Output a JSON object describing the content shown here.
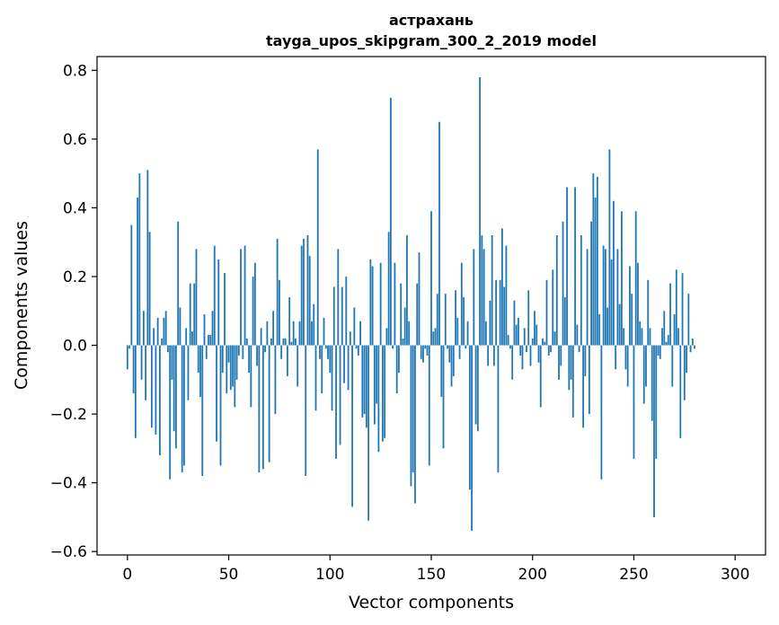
{
  "chart_data": {
    "type": "bar",
    "title": "астрахань",
    "subtitle": "tayga_upos_skipgram_300_2_2019 model",
    "xlabel": "Vector components",
    "ylabel": "Components values",
    "xlim": [
      -15,
      315
    ],
    "ylim": [
      -0.61,
      0.84
    ],
    "xticks": [
      0,
      50,
      100,
      150,
      200,
      250,
      300
    ],
    "xtick_labels": [
      "0",
      "50",
      "100",
      "150",
      "200",
      "250",
      "300"
    ],
    "yticks": [
      -0.6,
      -0.4,
      -0.2,
      0.0,
      0.2,
      0.4,
      0.6,
      0.8
    ],
    "ytick_labels": [
      "−0.6",
      "−0.4",
      "−0.2",
      "0.0",
      "0.2",
      "0.4",
      "0.6",
      "0.8"
    ],
    "bar_color": "#1f77b4",
    "grid": false,
    "values": [
      -0.07,
      -0.01,
      0.35,
      -0.14,
      -0.27,
      0.43,
      0.5,
      -0.1,
      0.1,
      -0.16,
      0.51,
      0.33,
      -0.24,
      0.05,
      -0.26,
      0.08,
      -0.32,
      0.02,
      0.08,
      0.1,
      -0.02,
      -0.39,
      -0.1,
      -0.25,
      -0.3,
      0.36,
      0.11,
      -0.37,
      -0.35,
      0.05,
      -0.16,
      0.18,
      0.04,
      0.18,
      0.28,
      -0.08,
      -0.15,
      -0.38,
      0.09,
      -0.04,
      0.03,
      0.03,
      0.1,
      0.29,
      -0.28,
      0.25,
      -0.35,
      -0.08,
      0.21,
      -0.14,
      -0.05,
      -0.13,
      -0.12,
      -0.18,
      -0.1,
      -0.03,
      0.28,
      -0.04,
      0.29,
      0.02,
      -0.08,
      -0.18,
      0.2,
      0.24,
      -0.06,
      -0.37,
      0.05,
      -0.36,
      -0.02,
      0.07,
      -0.34,
      0.02,
      0.1,
      -0.2,
      0.31,
      0.19,
      -0.04,
      0.02,
      0.02,
      -0.09,
      0.14,
      0.01,
      0.07,
      0.02,
      -0.12,
      0.07,
      0.29,
      0.31,
      -0.38,
      0.32,
      0.26,
      0.07,
      0.12,
      -0.19,
      0.57,
      -0.04,
      -0.14,
      0.08,
      -0.01,
      -0.04,
      -0.08,
      -0.19,
      0.17,
      -0.33,
      0.28,
      -0.29,
      0.17,
      -0.11,
      0.2,
      -0.13,
      0.04,
      -0.47,
      0.11,
      -0.01,
      -0.03,
      0.07,
      -0.21,
      -0.2,
      -0.24,
      -0.51,
      0.25,
      0.23,
      -0.23,
      -0.17,
      -0.31,
      0.24,
      -0.28,
      -0.27,
      0.05,
      0.33,
      0.72,
      -0.01,
      0.24,
      -0.14,
      -0.08,
      0.18,
      0.02,
      0.11,
      0.32,
      0.07,
      -0.41,
      -0.37,
      -0.46,
      0.18,
      0.27,
      -0.04,
      -0.05,
      -0.01,
      -0.03,
      -0.35,
      0.39,
      0.04,
      0.05,
      0.15,
      0.65,
      -0.15,
      -0.3,
      0.15,
      -0.01,
      -0.05,
      -0.12,
      -0.09,
      0.16,
      0.08,
      -0.04,
      0.24,
      0.14,
      -0.01,
      0.07,
      -0.42,
      -0.54,
      0.28,
      -0.23,
      -0.25,
      0.78,
      0.32,
      0.28,
      0.07,
      -0.06,
      0.13,
      0.32,
      -0.06,
      0.19,
      -0.37,
      0.19,
      0.34,
      0.17,
      0.29,
      0.03,
      -0.01,
      -0.1,
      0.13,
      0.06,
      0.08,
      -0.03,
      -0.07,
      0.05,
      -0.02,
      0.16,
      -0.06,
      0.02,
      0.1,
      0.06,
      -0.05,
      -0.18,
      0.02,
      0.01,
      0.19,
      -0.03,
      -0.02,
      0.22,
      0.04,
      0.32,
      -0.1,
      -0.06,
      0.36,
      0.14,
      0.46,
      -0.13,
      -0.1,
      -0.21,
      0.46,
      0.06,
      -0.02,
      0.32,
      -0.24,
      -0.09,
      0.28,
      -0.2,
      0.36,
      0.5,
      0.43,
      0.49,
      0.09,
      -0.39,
      0.29,
      0.28,
      0.11,
      0.57,
      0.25,
      0.42,
      -0.07,
      0.28,
      0.12,
      0.39,
      0.05,
      -0.07,
      -0.12,
      0.23,
      0.15,
      -0.33,
      0.39,
      0.24,
      0.07,
      0.05,
      -0.17,
      -0.12,
      0.19,
      0.05,
      -0.22,
      -0.5,
      -0.33,
      -0.03,
      -0.04,
      0.05,
      0.1,
      0.01,
      0.03,
      0.18,
      -0.12,
      0.09,
      0.22,
      0.05,
      -0.27,
      0.21,
      -0.16,
      -0.08,
      0.15,
      -0.02,
      0.02,
      -0.01
    ]
  }
}
